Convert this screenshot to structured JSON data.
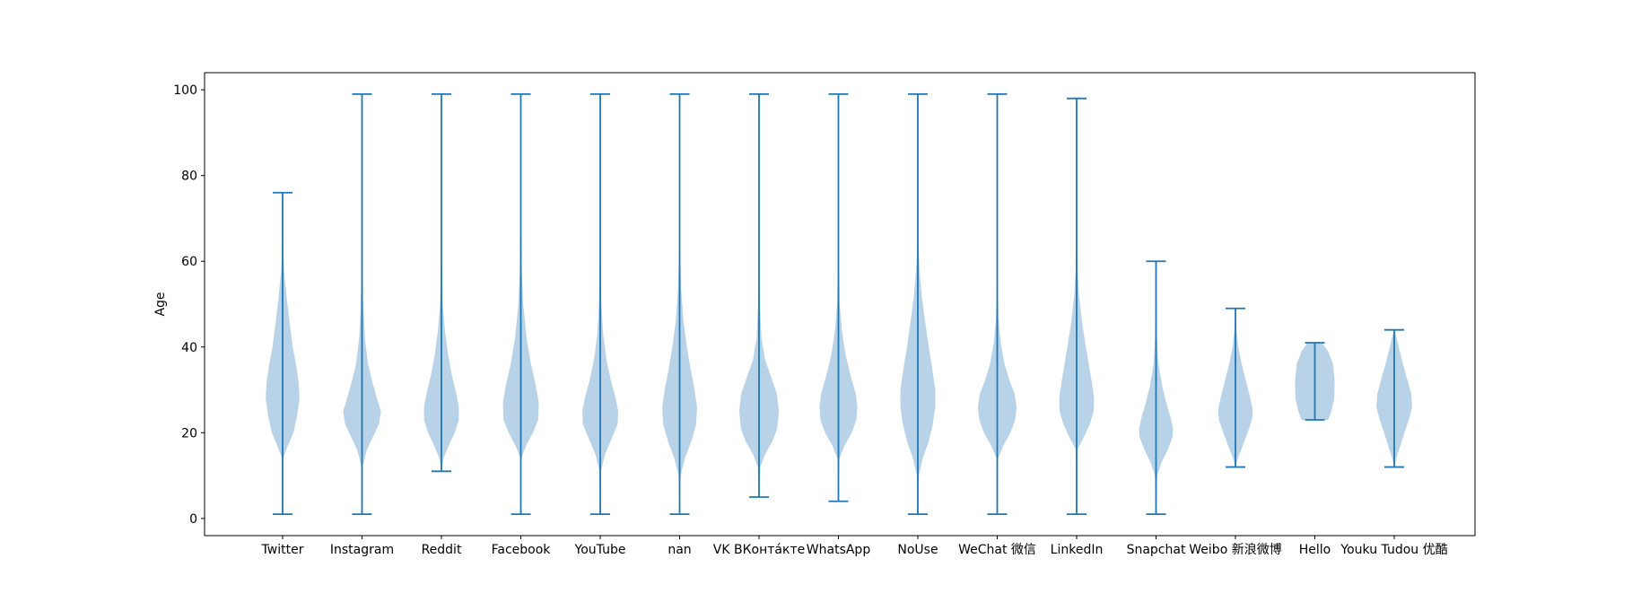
{
  "chart_data": {
    "type": "violin",
    "title": "",
    "xlabel": "",
    "ylabel": "Age",
    "ylim": [
      -4,
      104
    ],
    "yticks": [
      0,
      20,
      40,
      60,
      80,
      100
    ],
    "grid": false,
    "colors": {
      "violin_fill": "#a6c8e2",
      "violin_line": "#1f77b4",
      "axis": "#000000"
    },
    "categories": [
      {
        "label": "Twitter",
        "min": 1,
        "max": 76,
        "profile": [
          [
            1,
            0.0
          ],
          [
            14,
            0.02
          ],
          [
            17,
            0.22
          ],
          [
            20,
            0.45
          ],
          [
            24,
            0.6
          ],
          [
            28,
            0.7
          ],
          [
            32,
            0.66
          ],
          [
            36,
            0.55
          ],
          [
            40,
            0.42
          ],
          [
            46,
            0.28
          ],
          [
            52,
            0.16
          ],
          [
            58,
            0.06
          ],
          [
            65,
            0.02
          ],
          [
            76,
            0.0
          ]
        ]
      },
      {
        "label": "Instagram",
        "min": 1,
        "max": 99,
        "profile": [
          [
            1,
            0.0
          ],
          [
            12,
            0.02
          ],
          [
            16,
            0.2
          ],
          [
            19,
            0.45
          ],
          [
            22,
            0.7
          ],
          [
            25,
            0.78
          ],
          [
            28,
            0.62
          ],
          [
            32,
            0.42
          ],
          [
            36,
            0.25
          ],
          [
            42,
            0.12
          ],
          [
            50,
            0.05
          ],
          [
            60,
            0.02
          ],
          [
            99,
            0.0
          ]
        ]
      },
      {
        "label": "Reddit",
        "min": 11,
        "max": 99,
        "profile": [
          [
            11,
            0.0
          ],
          [
            14,
            0.08
          ],
          [
            17,
            0.3
          ],
          [
            20,
            0.55
          ],
          [
            23,
            0.72
          ],
          [
            26,
            0.72
          ],
          [
            29,
            0.62
          ],
          [
            33,
            0.45
          ],
          [
            38,
            0.28
          ],
          [
            44,
            0.14
          ],
          [
            50,
            0.06
          ],
          [
            60,
            0.02
          ],
          [
            99,
            0.0
          ]
        ]
      },
      {
        "label": "Facebook",
        "min": 1,
        "max": 99,
        "profile": [
          [
            1,
            0.0
          ],
          [
            14,
            0.02
          ],
          [
            17,
            0.22
          ],
          [
            20,
            0.5
          ],
          [
            23,
            0.72
          ],
          [
            27,
            0.74
          ],
          [
            31,
            0.62
          ],
          [
            36,
            0.42
          ],
          [
            42,
            0.24
          ],
          [
            50,
            0.1
          ],
          [
            58,
            0.04
          ],
          [
            70,
            0.01
          ],
          [
            99,
            0.0
          ]
        ]
      },
      {
        "label": "YouTube",
        "min": 1,
        "max": 99,
        "profile": [
          [
            1,
            0.0
          ],
          [
            11,
            0.03
          ],
          [
            15,
            0.2
          ],
          [
            19,
            0.5
          ],
          [
            22,
            0.72
          ],
          [
            25,
            0.74
          ],
          [
            28,
            0.64
          ],
          [
            32,
            0.45
          ],
          [
            37,
            0.26
          ],
          [
            43,
            0.12
          ],
          [
            50,
            0.05
          ],
          [
            60,
            0.02
          ],
          [
            99,
            0.0
          ]
        ]
      },
      {
        "label": "nan",
        "min": 1,
        "max": 99,
        "profile": [
          [
            1,
            0.0
          ],
          [
            10,
            0.04
          ],
          [
            14,
            0.22
          ],
          [
            18,
            0.48
          ],
          [
            22,
            0.68
          ],
          [
            26,
            0.72
          ],
          [
            30,
            0.62
          ],
          [
            35,
            0.45
          ],
          [
            40,
            0.3
          ],
          [
            46,
            0.16
          ],
          [
            53,
            0.07
          ],
          [
            62,
            0.02
          ],
          [
            99,
            0.0
          ]
        ]
      },
      {
        "label": "VK ВКонта́кте",
        "min": 5,
        "max": 99,
        "profile": [
          [
            5,
            0.0
          ],
          [
            12,
            0.05
          ],
          [
            15,
            0.25
          ],
          [
            18,
            0.55
          ],
          [
            21,
            0.75
          ],
          [
            25,
            0.82
          ],
          [
            29,
            0.74
          ],
          [
            33,
            0.5
          ],
          [
            37,
            0.25
          ],
          [
            42,
            0.1
          ],
          [
            50,
            0.04
          ],
          [
            60,
            0.01
          ],
          [
            99,
            0.0
          ]
        ]
      },
      {
        "label": "WhatsApp",
        "min": 4,
        "max": 99,
        "profile": [
          [
            4,
            0.0
          ],
          [
            14,
            0.04
          ],
          [
            17,
            0.25
          ],
          [
            20,
            0.55
          ],
          [
            23,
            0.74
          ],
          [
            26,
            0.78
          ],
          [
            29,
            0.72
          ],
          [
            33,
            0.52
          ],
          [
            38,
            0.3
          ],
          [
            44,
            0.14
          ],
          [
            50,
            0.05
          ],
          [
            60,
            0.02
          ],
          [
            99,
            0.0
          ]
        ]
      },
      {
        "label": "NoUse",
        "min": 1,
        "max": 99,
        "profile": [
          [
            1,
            0.0
          ],
          [
            10,
            0.04
          ],
          [
            14,
            0.2
          ],
          [
            18,
            0.45
          ],
          [
            22,
            0.62
          ],
          [
            26,
            0.72
          ],
          [
            30,
            0.72
          ],
          [
            34,
            0.62
          ],
          [
            40,
            0.45
          ],
          [
            46,
            0.3
          ],
          [
            52,
            0.16
          ],
          [
            58,
            0.07
          ],
          [
            65,
            0.02
          ],
          [
            99,
            0.0
          ]
        ]
      },
      {
        "label": "WeChat 微信",
        "min": 1,
        "max": 99,
        "profile": [
          [
            1,
            0.0
          ],
          [
            14,
            0.03
          ],
          [
            17,
            0.25
          ],
          [
            20,
            0.55
          ],
          [
            23,
            0.74
          ],
          [
            26,
            0.8
          ],
          [
            29,
            0.72
          ],
          [
            32,
            0.52
          ],
          [
            36,
            0.3
          ],
          [
            41,
            0.14
          ],
          [
            47,
            0.05
          ],
          [
            56,
            0.02
          ],
          [
            99,
            0.0
          ]
        ]
      },
      {
        "label": "LinkedIn",
        "min": 1,
        "max": 98,
        "profile": [
          [
            1,
            0.0
          ],
          [
            16,
            0.03
          ],
          [
            19,
            0.3
          ],
          [
            22,
            0.55
          ],
          [
            25,
            0.7
          ],
          [
            28,
            0.72
          ],
          [
            32,
            0.62
          ],
          [
            36,
            0.5
          ],
          [
            40,
            0.38
          ],
          [
            46,
            0.22
          ],
          [
            52,
            0.1
          ],
          [
            58,
            0.04
          ],
          [
            66,
            0.01
          ],
          [
            98,
            0.0
          ]
        ]
      },
      {
        "label": "Snapchat",
        "min": 1,
        "max": 60,
        "profile": [
          [
            1,
            0.0
          ],
          [
            10,
            0.05
          ],
          [
            13,
            0.22
          ],
          [
            16,
            0.48
          ],
          [
            19,
            0.68
          ],
          [
            21,
            0.7
          ],
          [
            24,
            0.58
          ],
          [
            27,
            0.42
          ],
          [
            31,
            0.25
          ],
          [
            36,
            0.1
          ],
          [
            42,
            0.04
          ],
          [
            60,
            0.0
          ]
        ]
      },
      {
        "label": "Weibo 新浪微博",
        "min": 12,
        "max": 49,
        "profile": [
          [
            12,
            0.0
          ],
          [
            14,
            0.1
          ],
          [
            17,
            0.3
          ],
          [
            20,
            0.5
          ],
          [
            23,
            0.68
          ],
          [
            25,
            0.72
          ],
          [
            28,
            0.62
          ],
          [
            32,
            0.44
          ],
          [
            36,
            0.26
          ],
          [
            40,
            0.12
          ],
          [
            44,
            0.04
          ],
          [
            49,
            0.0
          ]
        ]
      },
      {
        "label": "Hello",
        "min": 23,
        "max": 41,
        "profile": [
          [
            23,
            0.55
          ],
          [
            25,
            0.68
          ],
          [
            28,
            0.8
          ],
          [
            32,
            0.82
          ],
          [
            36,
            0.75
          ],
          [
            39,
            0.55
          ],
          [
            41,
            0.3
          ]
        ]
      },
      {
        "label": "Youku Tudou 优酷",
        "min": 12,
        "max": 44,
        "profile": [
          [
            12,
            0.0
          ],
          [
            14,
            0.08
          ],
          [
            17,
            0.25
          ],
          [
            20,
            0.42
          ],
          [
            23,
            0.6
          ],
          [
            26,
            0.74
          ],
          [
            29,
            0.7
          ],
          [
            32,
            0.56
          ],
          [
            36,
            0.36
          ],
          [
            40,
            0.18
          ],
          [
            44,
            0.02
          ]
        ]
      }
    ]
  }
}
